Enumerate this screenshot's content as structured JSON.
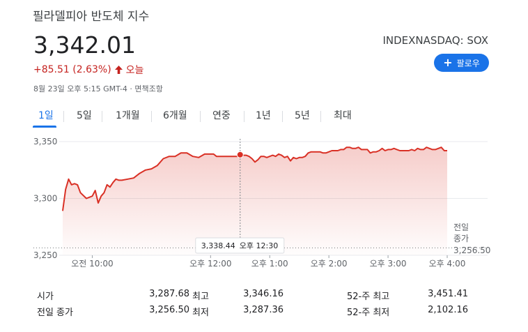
{
  "header": {
    "title": "필라델피아 반도체 지수",
    "price": "3,342.01",
    "change": "+85.51 (2.63%)",
    "change_direction_icon": "arrow-up-icon",
    "change_period": "오늘",
    "timestamp": "8월 23일 오후 5:15 GMT-4 · 면책조항",
    "exchange": "INDEXNASDAQ: SOX",
    "follow_label": "팔로우",
    "follow_icon": "plus-icon",
    "colors": {
      "negative": "#c5221f",
      "accent": "#1a73e8"
    }
  },
  "tabs": [
    {
      "label": "1일",
      "active": true
    },
    {
      "label": "5일",
      "active": false
    },
    {
      "label": "1개월",
      "active": false
    },
    {
      "label": "6개월",
      "active": false
    },
    {
      "label": "연중",
      "active": false
    },
    {
      "label": "1년",
      "active": false
    },
    {
      "label": "5년",
      "active": false
    },
    {
      "label": "최대",
      "active": false
    }
  ],
  "chart_data": {
    "type": "area",
    "title": "",
    "xlabel": "",
    "ylabel": "",
    "ylim": [
      3250,
      3350
    ],
    "y_ticks": [
      "3,350",
      "3,300",
      "3,250"
    ],
    "x_ticks": [
      "오전 10:00",
      "오후 12:00",
      "오후 1:00",
      "오후 2:00",
      "오후 3:00",
      "오후 4:00"
    ],
    "x_tick_minutes": [
      600,
      720,
      780,
      840,
      900,
      960
    ],
    "x_range_minutes": [
      570,
      960
    ],
    "previous_close": {
      "label_line1": "전일",
      "label_line2": "종가",
      "value": 3256.5,
      "value_label": "3,256.50"
    },
    "cursor": {
      "time_minutes": 750,
      "value": 3338.44,
      "value_label": "3,338.44",
      "time_label": "오후 12:30"
    },
    "series": [
      {
        "color": "#d93025",
        "x": [
          570,
          573,
          576,
          579,
          582,
          585,
          588,
          594,
          600,
          603,
          606,
          609,
          612,
          615,
          618,
          621,
          624,
          627,
          630,
          636,
          642,
          648,
          654,
          660,
          666,
          672,
          678,
          684,
          690,
          696,
          702,
          708,
          714,
          720,
          723,
          726,
          729,
          732,
          735,
          741,
          747,
          750,
          753,
          756,
          759,
          762,
          765,
          768,
          771,
          774,
          777,
          780,
          783,
          786,
          789,
          792,
          795,
          798,
          801,
          804,
          807,
          810,
          813,
          816,
          819,
          822,
          825,
          828,
          831,
          834,
          837,
          840,
          843,
          846,
          849,
          852,
          855,
          858,
          861,
          864,
          867,
          870,
          873,
          876,
          879,
          882,
          885,
          888,
          891,
          894,
          897,
          900,
          903,
          906,
          909,
          912,
          915,
          918,
          921,
          924,
          927,
          930,
          933,
          936,
          939,
          942,
          945,
          948,
          951,
          954,
          957,
          960
        ],
        "values": [
          3289,
          3308,
          3317,
          3312,
          3313,
          3312,
          3305,
          3300,
          3302,
          3307,
          3296,
          3302,
          3305,
          3312,
          3310,
          3314,
          3317,
          3316,
          3316,
          3317,
          3318,
          3322,
          3325,
          3326,
          3329,
          3335,
          3337,
          3337,
          3340,
          3340,
          3337,
          3336,
          3339,
          3339,
          3339,
          3337,
          3337,
          3337,
          3337,
          3337,
          3337,
          3338,
          3338,
          3338,
          3337,
          3335,
          3332,
          3334,
          3337,
          3337,
          3336,
          3337,
          3338,
          3337,
          3339,
          3338,
          3336,
          3337,
          3333,
          3336,
          3335,
          3336,
          3336,
          3337,
          3340,
          3341,
          3341,
          3341,
          3341,
          3340,
          3340,
          3341,
          3342,
          3342,
          3342,
          3343,
          3343,
          3345,
          3345,
          3344,
          3344,
          3345,
          3343,
          3343,
          3343,
          3340,
          3341,
          3341,
          3342,
          3344,
          3342,
          3343,
          3343,
          3344,
          3343,
          3342,
          3342,
          3342,
          3342,
          3343,
          3342,
          3344,
          3343,
          3343,
          3345,
          3344,
          3343,
          3343,
          3344,
          3345,
          3342,
          3342
        ]
      }
    ]
  },
  "stats": [
    {
      "label": "시가",
      "value": "3,287.68"
    },
    {
      "label": "전일 종가",
      "value": "3,256.50"
    },
    {
      "label": "최고",
      "value": "3,346.16"
    },
    {
      "label": "최저",
      "value": "3,287.36"
    },
    {
      "label": "52-주 최고",
      "value": "3,451.41"
    },
    {
      "label": "52-주 최저",
      "value": "2,102.16"
    }
  ]
}
